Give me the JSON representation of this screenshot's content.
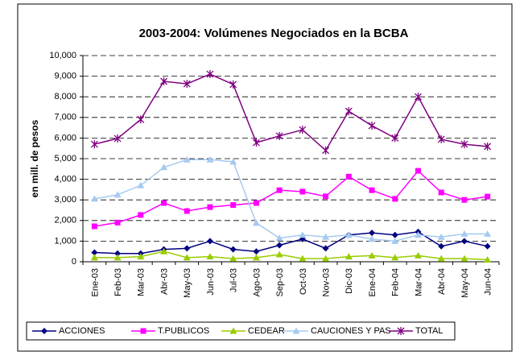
{
  "chart_data": {
    "type": "line",
    "title": "2003-2004: Volúmenes Negociados en la BCBA",
    "y_label": "en mill. de pesos",
    "categories": [
      "Ene-03",
      "Feb-03",
      "Mar-03",
      "Abr-03",
      "May-03",
      "Jun-03",
      "Jul-03",
      "Ago-03",
      "Sep-03",
      "Oct-03",
      "Nov-03",
      "Dic-03",
      "Ene-04",
      "Feb-04",
      "Mar-04",
      "Abr-04",
      "May-04",
      "Jun-04"
    ],
    "series": [
      {
        "name": "ACCIONES",
        "color": "#000080",
        "marker": "diamond",
        "values": [
          450,
          400,
          400,
          600,
          650,
          1000,
          600,
          500,
          800,
          1100,
          650,
          1300,
          1400,
          1300,
          1450,
          750,
          1000,
          750
        ]
      },
      {
        "name": "T.PUBLICOS",
        "color": "#ff00ff",
        "marker": "square",
        "values": [
          1720,
          1900,
          2270,
          2850,
          2460,
          2650,
          2750,
          2850,
          3470,
          3400,
          3170,
          4130,
          3470,
          3050,
          4410,
          3360,
          3000,
          3160
        ]
      },
      {
        "name": "CEDEAR",
        "color": "#99cc00",
        "marker": "triangle",
        "values": [
          200,
          200,
          250,
          500,
          200,
          250,
          150,
          200,
          350,
          150,
          150,
          250,
          300,
          200,
          300,
          150,
          150,
          100
        ]
      },
      {
        "name": "CAUCIONES Y PAS",
        "color": "#a6caf0",
        "marker": "triangle",
        "values": [
          3050,
          3250,
          3700,
          4580,
          4950,
          4950,
          4850,
          1880,
          1150,
          1300,
          1200,
          1300,
          1100,
          1000,
          1300,
          1200,
          1350,
          1350
        ]
      },
      {
        "name": "TOTAL",
        "color": "#800080",
        "marker": "star",
        "values": [
          5700,
          5980,
          6900,
          8750,
          8630,
          9100,
          8600,
          5780,
          6100,
          6400,
          5400,
          7300,
          6600,
          6000,
          8000,
          5940,
          5700,
          5590
        ]
      }
    ],
    "ylim": [
      0,
      10000
    ],
    "yticks": [
      0,
      {
        "value": 1000,
        "label": "1,000"
      },
      {
        "value": 2000,
        "label": "2,000"
      },
      {
        "value": 3000,
        "label": "3,000"
      },
      {
        "value": 4000,
        "label": "4,000"
      },
      {
        "value": 5000,
        "label": "5,000"
      },
      {
        "value": 6000,
        "label": "6,000"
      },
      {
        "value": 7000,
        "label": "7,000"
      },
      {
        "value": 8000,
        "label": "8,000"
      },
      {
        "value": 9000,
        "label": "9,000"
      },
      {
        "value": 10000,
        "label": "10,000"
      }
    ],
    "grid": true,
    "legend": "bottom"
  }
}
